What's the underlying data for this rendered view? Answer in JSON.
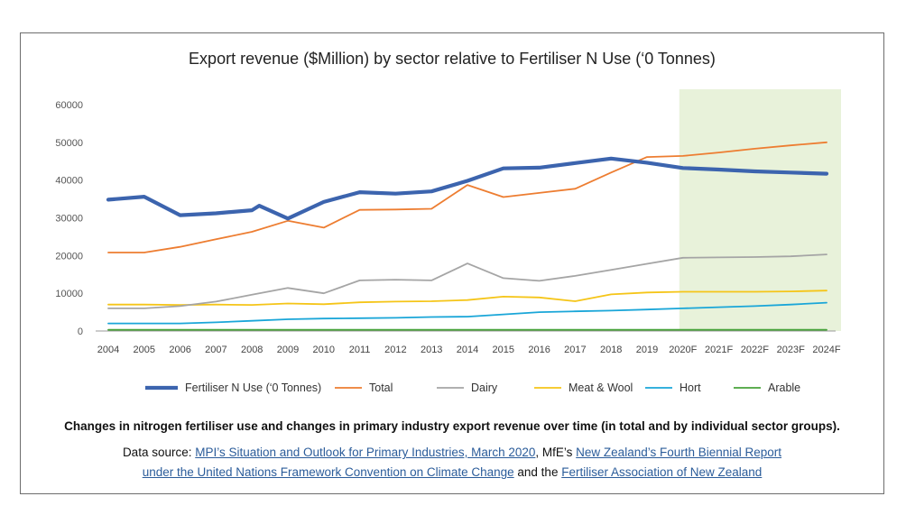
{
  "chart_data": {
    "type": "line",
    "title": "Export revenue ($Million) by sector relative to Fertiliser N Use (‘0 Tonnes)",
    "xlabel": "",
    "ylabel": "",
    "ylim": [
      0,
      60000
    ],
    "yticks": [
      "0",
      "10000",
      "20000",
      "30000",
      "40000",
      "50000",
      "60000"
    ],
    "categories": [
      "2004",
      "2005",
      "2006",
      "2007",
      "2008",
      "2009",
      "2010",
      "2011",
      "2012",
      "2013",
      "2014",
      "2015",
      "2016",
      "2017",
      "2018",
      "2019",
      "2020F",
      "2021F",
      "2022F",
      "2023F",
      "2024F"
    ],
    "forecast_shading": {
      "from": "2020F",
      "to": "2024F",
      "color": "#e8f2da"
    },
    "legend_position": "bottom",
    "series": [
      {
        "name": "Fertiliser N Use (‘0 Tonnes)",
        "color": "#3c64ae",
        "width": 4.2,
        "points": [
          [
            0,
            34800
          ],
          [
            1,
            35600
          ],
          [
            2,
            30700
          ],
          [
            3,
            31200
          ],
          [
            4,
            32000
          ],
          [
            4.2,
            33200
          ],
          [
            5,
            29800
          ],
          [
            6,
            34200
          ],
          [
            7,
            36800
          ],
          [
            8,
            36400
          ],
          [
            9,
            37000
          ],
          [
            10,
            39800
          ],
          [
            11,
            43100
          ],
          [
            12,
            43300
          ],
          [
            13,
            44500
          ],
          [
            14,
            45700
          ],
          [
            15,
            44600
          ],
          [
            16,
            43200
          ],
          [
            17,
            42800
          ],
          [
            18,
            42300
          ],
          [
            19,
            42000
          ],
          [
            20,
            41700
          ]
        ]
      },
      {
        "name": "Total",
        "color": "#ed7d31",
        "width": 1.8,
        "points": [
          [
            0,
            20800
          ],
          [
            1,
            20800
          ],
          [
            2,
            22300
          ],
          [
            3,
            24300
          ],
          [
            4,
            26300
          ],
          [
            5,
            29200
          ],
          [
            6,
            27400
          ],
          [
            7,
            32100
          ],
          [
            8,
            32200
          ],
          [
            9,
            32400
          ],
          [
            10,
            38700
          ],
          [
            11,
            35500
          ],
          [
            12,
            36600
          ],
          [
            13,
            37700
          ],
          [
            14,
            42000
          ],
          [
            15,
            46100
          ],
          [
            16,
            46400
          ],
          [
            17,
            47300
          ],
          [
            18,
            48300
          ],
          [
            19,
            49200
          ],
          [
            20,
            50000
          ]
        ]
      },
      {
        "name": "Dairy",
        "color": "#a5a5a5",
        "width": 1.8,
        "points": [
          [
            0,
            6000
          ],
          [
            1,
            6000
          ],
          [
            2,
            6600
          ],
          [
            3,
            7800
          ],
          [
            4,
            9600
          ],
          [
            5,
            11400
          ],
          [
            6,
            10000
          ],
          [
            7,
            13400
          ],
          [
            8,
            13600
          ],
          [
            9,
            13400
          ],
          [
            10,
            17900
          ],
          [
            11,
            14000
          ],
          [
            12,
            13300
          ],
          [
            13,
            14600
          ],
          [
            14,
            16200
          ],
          [
            15,
            17800
          ],
          [
            16,
            19400
          ],
          [
            17,
            19500
          ],
          [
            18,
            19600
          ],
          [
            19,
            19800
          ],
          [
            20,
            20300
          ]
        ]
      },
      {
        "name": "Meat & Wool",
        "color": "#f5c518",
        "width": 1.8,
        "points": [
          [
            0,
            7000
          ],
          [
            1,
            7000
          ],
          [
            2,
            6900
          ],
          [
            3,
            7000
          ],
          [
            4,
            6900
          ],
          [
            5,
            7300
          ],
          [
            6,
            7100
          ],
          [
            7,
            7600
          ],
          [
            8,
            7800
          ],
          [
            9,
            7900
          ],
          [
            10,
            8200
          ],
          [
            11,
            9100
          ],
          [
            12,
            8900
          ],
          [
            13,
            7900
          ],
          [
            14,
            9700
          ],
          [
            15,
            10200
          ],
          [
            16,
            10400
          ],
          [
            17,
            10400
          ],
          [
            18,
            10400
          ],
          [
            19,
            10500
          ],
          [
            20,
            10700
          ]
        ]
      },
      {
        "name": "Hort",
        "color": "#1aa6d8",
        "width": 1.8,
        "points": [
          [
            0,
            2000
          ],
          [
            1,
            2000
          ],
          [
            2,
            2000
          ],
          [
            3,
            2300
          ],
          [
            4,
            2700
          ],
          [
            5,
            3100
          ],
          [
            6,
            3300
          ],
          [
            7,
            3400
          ],
          [
            8,
            3500
          ],
          [
            9,
            3700
          ],
          [
            10,
            3800
          ],
          [
            11,
            4400
          ],
          [
            12,
            5000
          ],
          [
            13,
            5200
          ],
          [
            14,
            5400
          ],
          [
            15,
            5700
          ],
          [
            16,
            6000
          ],
          [
            17,
            6300
          ],
          [
            18,
            6600
          ],
          [
            19,
            7000
          ],
          [
            20,
            7500
          ]
        ]
      },
      {
        "name": "Arable",
        "color": "#47a33a",
        "width": 1.8,
        "points": [
          [
            0,
            300
          ],
          [
            1,
            300
          ],
          [
            2,
            300
          ],
          [
            3,
            300
          ],
          [
            4,
            300
          ],
          [
            5,
            300
          ],
          [
            6,
            300
          ],
          [
            7,
            300
          ],
          [
            8,
            300
          ],
          [
            9,
            300
          ],
          [
            10,
            300
          ],
          [
            11,
            300
          ],
          [
            12,
            300
          ],
          [
            13,
            300
          ],
          [
            14,
            300
          ],
          [
            15,
            300
          ],
          [
            16,
            300
          ],
          [
            17,
            300
          ],
          [
            18,
            300
          ],
          [
            19,
            300
          ],
          [
            20,
            300
          ]
        ]
      }
    ]
  },
  "caption": {
    "title": "Changes in nitrogen fertiliser use and changes in primary industry export revenue over time (in total and by individual sector groups).",
    "source_prefix": "Data source: ",
    "link_mpi": "MPI’s Situation and Outlook for Primary Industries, March 2020",
    "source_mid1": ", MfE’s ",
    "link_mfe_part1": "New Zealand’s Fourth Biennial Report",
    "link_mfe_part2": "under the United Nations Framework Convention on Climate Change",
    "source_mid2": " and the ",
    "link_fertiliser": "Fertiliser Association of New Zealand"
  }
}
